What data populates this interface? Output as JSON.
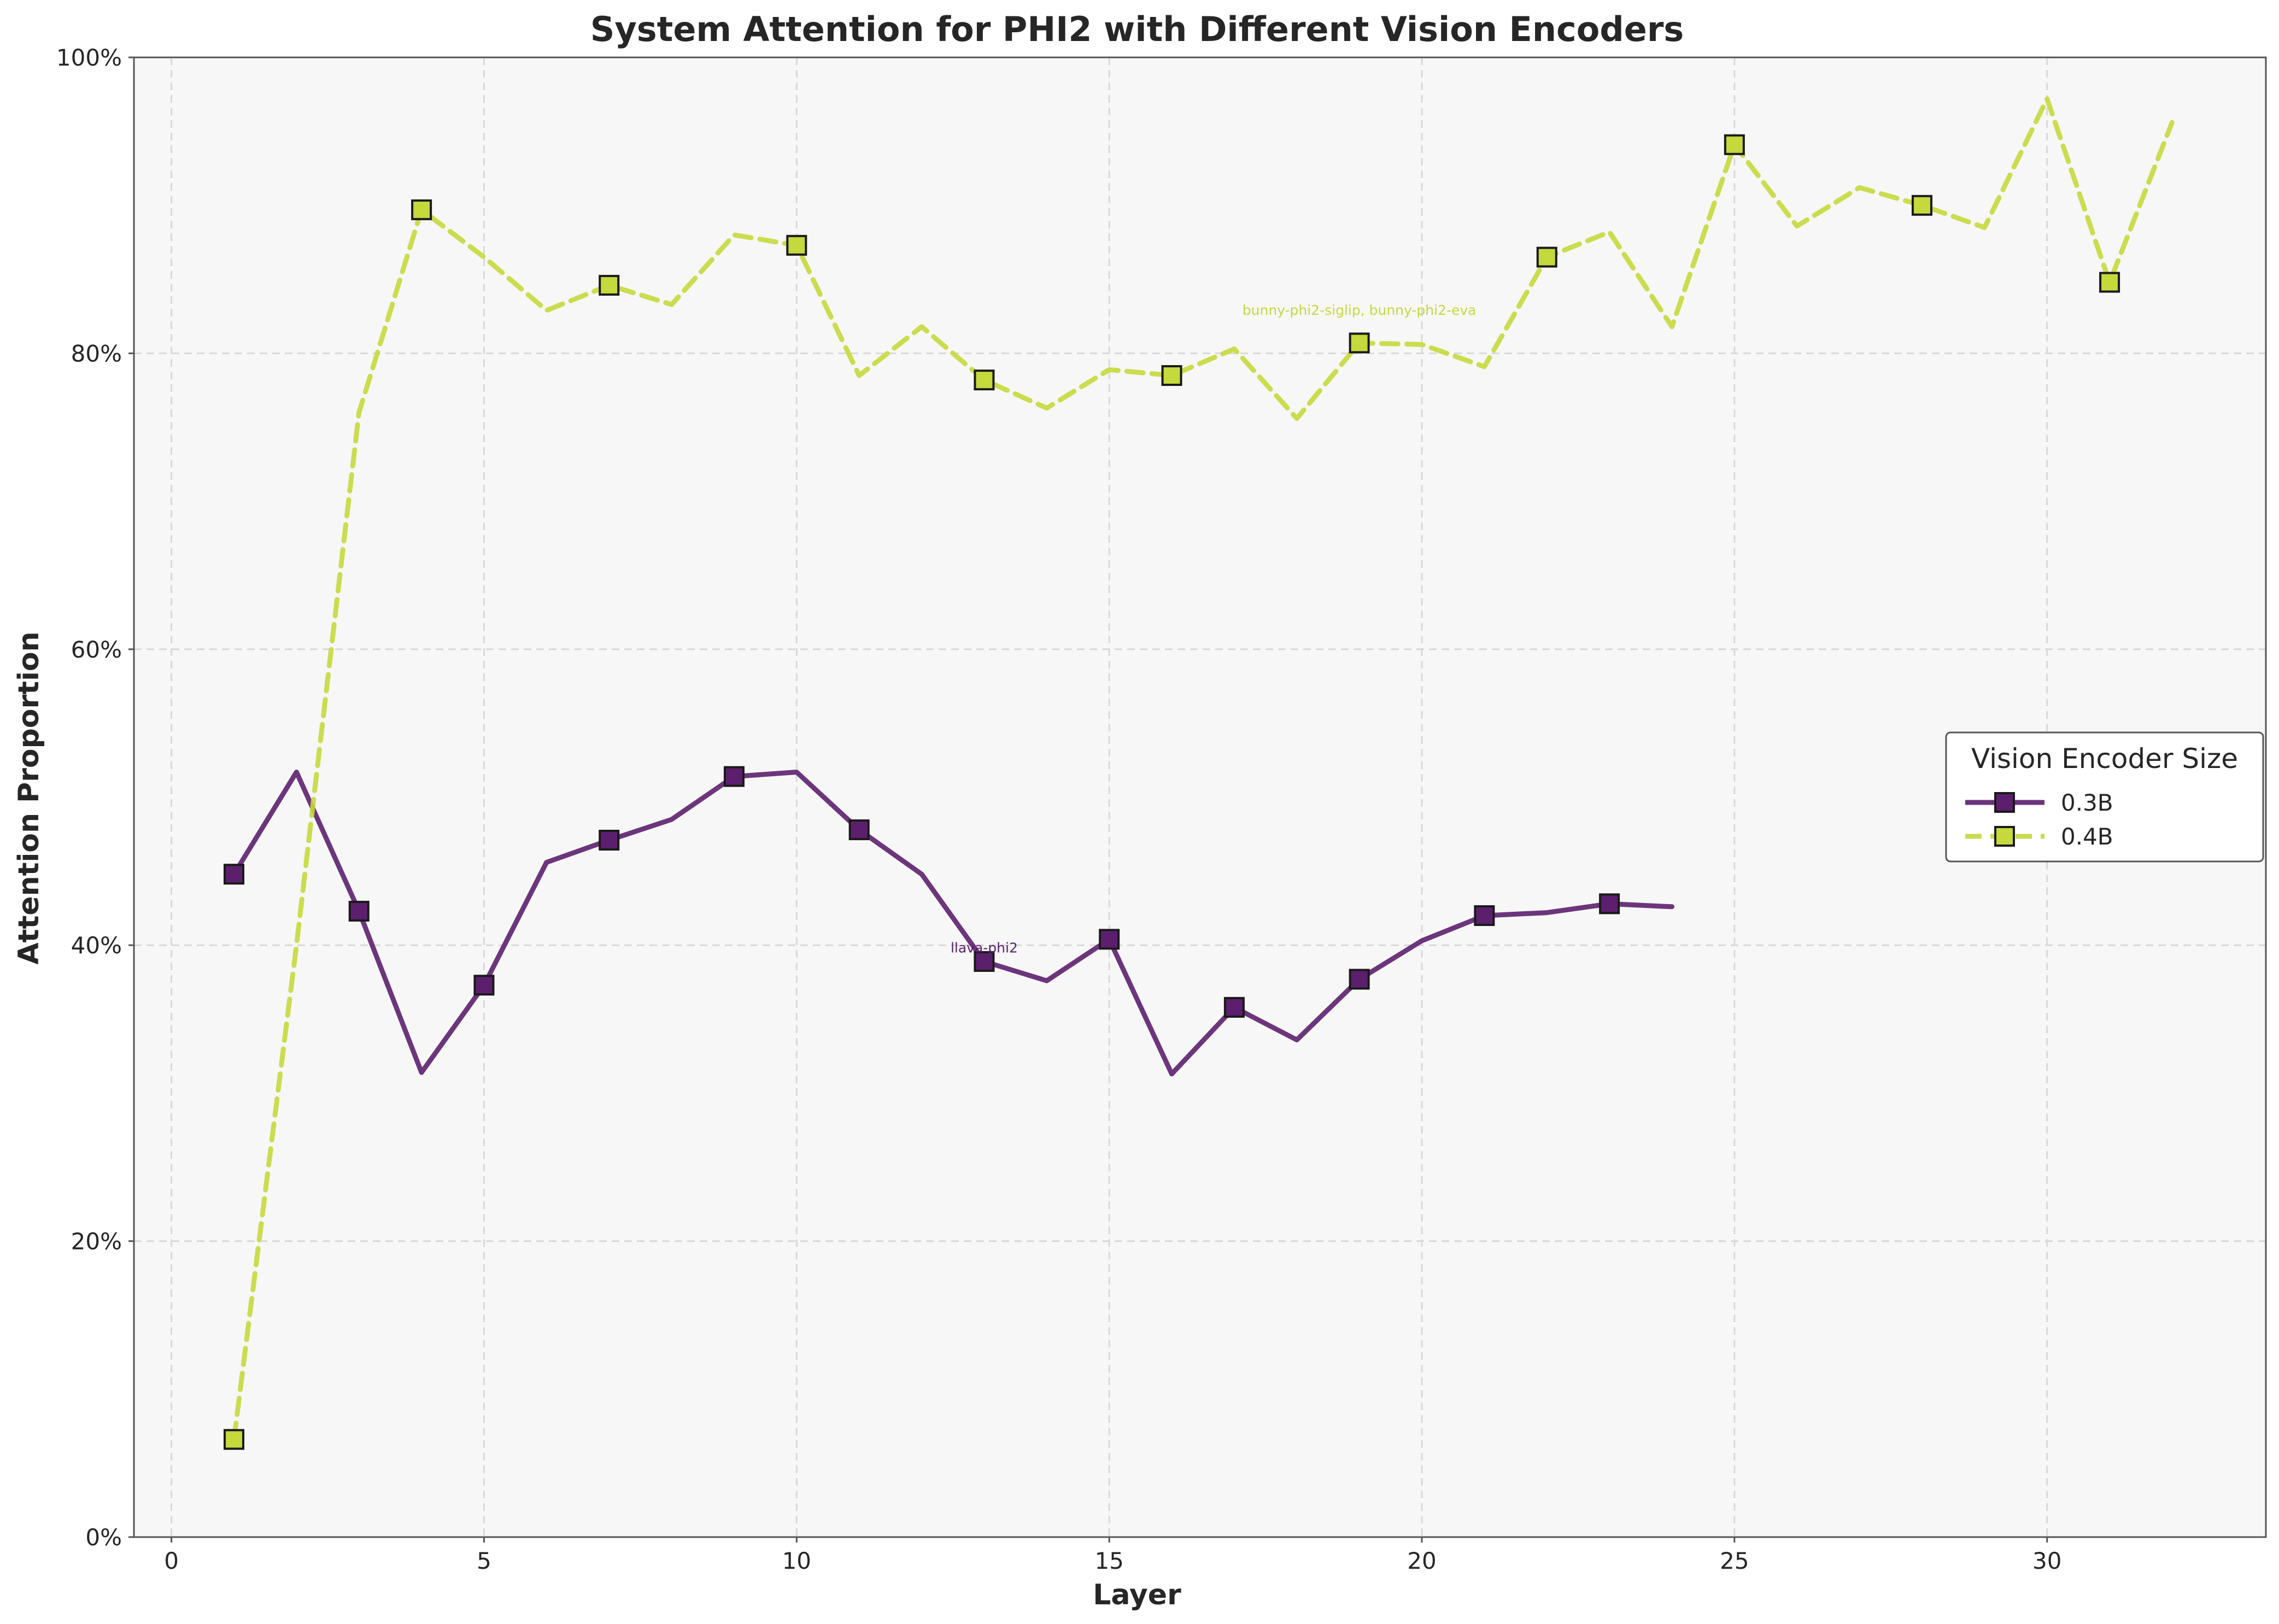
{
  "chart_data": {
    "type": "line",
    "title": "System Attention for PHI2 with Different Vision Encoders",
    "xlabel": "Layer",
    "ylabel": "Attention Proportion",
    "xlim": [
      -0.6,
      33.5
    ],
    "ylim": [
      0,
      100
    ],
    "xticks": [
      0,
      5,
      10,
      15,
      20,
      25,
      30
    ],
    "xtick_labels": [
      "0",
      "5",
      "10",
      "15",
      "20",
      "25",
      "30"
    ],
    "yticks": [
      0,
      20,
      40,
      60,
      80,
      100
    ],
    "ytick_labels": [
      "0%",
      "20%",
      "40%",
      "60%",
      "80%",
      "100%"
    ],
    "grid": true,
    "legend": {
      "title": "Vision Encoder Size",
      "placement": "center-right"
    },
    "series": [
      {
        "name": "0.3B",
        "color": "#5c1f6e",
        "line_style": "solid",
        "marker": "square",
        "x": [
          1,
          2,
          3,
          4,
          5,
          6,
          7,
          8,
          9,
          10,
          11,
          12,
          13,
          14,
          15,
          16,
          17,
          18,
          19,
          20,
          21,
          22,
          23,
          24
        ],
        "y": [
          44.8,
          51.7,
          42.3,
          31.4,
          37.3,
          45.6,
          47.1,
          48.5,
          51.4,
          51.7,
          47.8,
          44.8,
          38.9,
          37.6,
          40.4,
          31.3,
          35.8,
          33.6,
          37.7,
          40.3,
          42.0,
          42.2,
          42.8,
          42.6
        ],
        "marker_every": [
          1,
          3,
          5,
          7,
          9,
          11,
          13,
          15,
          17,
          19,
          21,
          23
        ]
      },
      {
        "name": "0.4B",
        "color": "#c5d83c",
        "line_style": "dashed",
        "marker": "square",
        "x": [
          1,
          2,
          3,
          4,
          5,
          6,
          7,
          8,
          9,
          10,
          11,
          12,
          13,
          14,
          15,
          16,
          17,
          18,
          19,
          20,
          21,
          22,
          23,
          24,
          25,
          26,
          27,
          28,
          29,
          30,
          31,
          32
        ],
        "y": [
          6.6,
          40.0,
          76.0,
          89.7,
          86.5,
          82.9,
          84.6,
          83.3,
          88.0,
          87.3,
          78.5,
          81.8,
          78.2,
          76.3,
          78.9,
          78.5,
          80.3,
          75.6,
          80.7,
          80.6,
          79.1,
          86.5,
          88.2,
          81.8,
          94.1,
          88.6,
          91.2,
          90.0,
          88.5,
          97.2,
          84.8,
          95.6
        ],
        "marker_every": [
          1,
          4,
          7,
          10,
          13,
          16,
          19,
          22,
          25,
          28,
          31
        ]
      }
    ],
    "annotations": [
      {
        "text": "llava-phi2",
        "x": 13,
        "y": 39.5,
        "series": "0.3B"
      },
      {
        "text": "bunny-phi2-siglip, bunny-phi2-eva",
        "x": 19,
        "y": 82.6,
        "series": "0.4B"
      }
    ]
  }
}
